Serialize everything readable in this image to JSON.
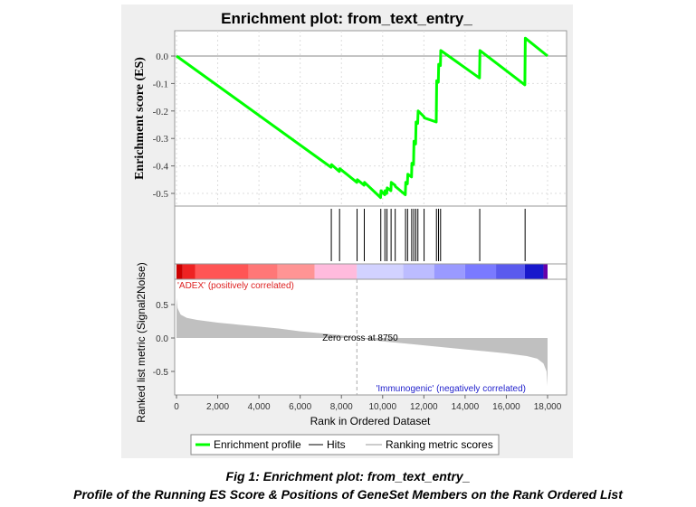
{
  "figure": {
    "caption_line1": "Fig 1: Enrichment plot: from_text_entry_",
    "caption_line2": "Profile of the Running ES Score & Positions of GeneSet Members on the Rank Ordered List"
  },
  "chart_data": {
    "type": "line",
    "title": "Enrichment plot: from_text_entry_",
    "xlabel": "Rank in Ordered Dataset",
    "xlim": [
      0,
      18000
    ],
    "x_ticks": [
      "0",
      "2,000",
      "4,000",
      "6,000",
      "8,000",
      "10,000",
      "12,000",
      "14,000",
      "16,000",
      "18,000"
    ],
    "x_tick_values": [
      0,
      2000,
      4000,
      6000,
      8000,
      10000,
      12000,
      14000,
      16000,
      18000
    ],
    "es_panel": {
      "ylabel": "Enrichment score (ES)",
      "ylim": [
        -0.55,
        0.08
      ],
      "y_ticks": [
        "0.0",
        "-0.1",
        "-0.2",
        "-0.3",
        "-0.4",
        "-0.5"
      ],
      "y_tick_values": [
        0.0,
        -0.1,
        -0.2,
        -0.3,
        -0.4,
        -0.5
      ],
      "grid": true,
      "series": [
        {
          "name": "Enrichment profile",
          "color": "#00ff00",
          "x": [
            0,
            7500,
            7520,
            7900,
            7920,
            8750,
            8770,
            9100,
            9120,
            9900,
            9920,
            10100,
            10120,
            10200,
            10220,
            10400,
            10420,
            10600,
            10620,
            11100,
            11120,
            11200,
            11220,
            11400,
            11420,
            11500,
            11520,
            11600,
            11620,
            11700,
            11720,
            12000,
            12020,
            12600,
            12620,
            12700,
            12720,
            12800,
            12820,
            14700,
            14720,
            16900,
            16920,
            18000
          ],
          "y": [
            0.0,
            -0.405,
            -0.395,
            -0.42,
            -0.41,
            -0.46,
            -0.45,
            -0.47,
            -0.46,
            -0.515,
            -0.49,
            -0.505,
            -0.49,
            -0.5,
            -0.48,
            -0.49,
            -0.46,
            -0.47,
            -0.475,
            -0.505,
            -0.46,
            -0.465,
            -0.43,
            -0.44,
            -0.39,
            -0.395,
            -0.31,
            -0.32,
            -0.24,
            -0.245,
            -0.2,
            -0.22,
            -0.225,
            -0.24,
            -0.09,
            -0.095,
            -0.03,
            -0.035,
            0.02,
            -0.08,
            0.02,
            -0.105,
            0.065,
            0.0
          ]
        }
      ]
    },
    "hits": {
      "name": "Hits",
      "color": "#000000",
      "x": [
        7510,
        7910,
        8760,
        9110,
        9910,
        10110,
        10210,
        10410,
        10610,
        11110,
        11210,
        11410,
        11510,
        11610,
        11710,
        12010,
        12610,
        12710,
        12810,
        14710,
        16910
      ]
    },
    "heat_bar": {
      "segments": [
        {
          "from": 0,
          "to": 300,
          "color": "#cc0000"
        },
        {
          "from": 300,
          "to": 900,
          "color": "#ee2222"
        },
        {
          "from": 900,
          "to": 3500,
          "color": "#ff5555"
        },
        {
          "from": 3500,
          "to": 4900,
          "color": "#ff7777"
        },
        {
          "from": 4900,
          "to": 6700,
          "color": "#ff9494"
        },
        {
          "from": 6700,
          "to": 8750,
          "color": "#ffbbdd"
        },
        {
          "from": 8750,
          "to": 11000,
          "color": "#d2d2ff"
        },
        {
          "from": 11000,
          "to": 12500,
          "color": "#bcbcff"
        },
        {
          "from": 12500,
          "to": 14000,
          "color": "#9a9aff"
        },
        {
          "from": 14000,
          "to": 15500,
          "color": "#7a7aff"
        },
        {
          "from": 15500,
          "to": 16900,
          "color": "#5a5aee"
        },
        {
          "from": 16900,
          "to": 17800,
          "color": "#1818cc"
        },
        {
          "from": 17800,
          "to": 18000,
          "color": "#6600aa"
        }
      ]
    },
    "metric_panel": {
      "ylabel": "Ranked list metric (Signal2Noise)",
      "ylim": [
        -0.8,
        0.72
      ],
      "y_ticks": [
        "0.5",
        "0.0",
        "-0.5"
      ],
      "y_tick_values": [
        0.5,
        0.0,
        -0.5
      ],
      "series": [
        {
          "name": "Ranking metric scores",
          "color": "#c0c0c0",
          "x": [
            0,
            50,
            200,
            500,
            1000,
            2000,
            3000,
            4000,
            5000,
            6000,
            7000,
            8000,
            8750,
            9500,
            10000,
            11000,
            12000,
            13000,
            14000,
            15000,
            16000,
            17000,
            17500,
            17800,
            17950,
            18000
          ],
          "y": [
            0.6,
            0.45,
            0.35,
            0.3,
            0.27,
            0.23,
            0.2,
            0.17,
            0.14,
            0.1,
            0.07,
            0.04,
            0.0,
            -0.03,
            -0.05,
            -0.08,
            -0.11,
            -0.14,
            -0.17,
            -0.2,
            -0.23,
            -0.27,
            -0.31,
            -0.38,
            -0.5,
            -0.72
          ]
        }
      ],
      "zero_cross": {
        "x": 8750,
        "label": "Zero cross at 8750"
      },
      "pos_label": "'ADEX' (positively correlated)",
      "pos_color": "#dd2222",
      "neg_label": "'Immunogenic' (negatively correlated)",
      "neg_color": "#2222cc"
    },
    "legend": {
      "position": "bottom",
      "items": [
        {
          "label": "Enrichment profile",
          "color": "#00ff00"
        },
        {
          "label": "Hits",
          "color": "#000000"
        },
        {
          "label": "Ranking metric scores",
          "color": "#c0c0c0"
        }
      ]
    }
  }
}
